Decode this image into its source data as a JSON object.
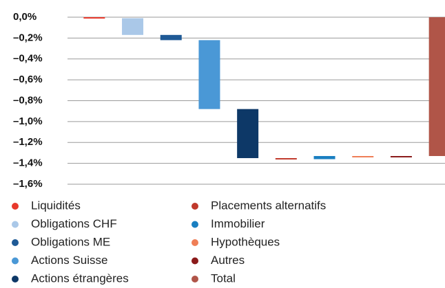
{
  "chart_data": {
    "type": "waterfall",
    "categories": [
      "Liquidités",
      "Obligations CHF",
      "Obligations ME",
      "Actions Suisse",
      "Actions étrangères",
      "Placements alternatifs",
      "Immobilier",
      "Hypothèques",
      "Autres",
      "Total"
    ],
    "values": [
      -0.01,
      -0.16,
      -0.05,
      -0.66,
      -0.47,
      -0.01,
      0.03,
      0.0,
      0.0,
      -1.33
    ],
    "colors": [
      "#e8392c",
      "#aac8e8",
      "#1f5a96",
      "#4a98d6",
      "#0d3867",
      "#c0392b",
      "#1a7fc1",
      "#ef7e56",
      "#8b1a1a",
      "#b05548"
    ],
    "last_is_total": true,
    "ylim": [
      -1.6,
      0
    ],
    "yticks": [
      {
        "value": 0,
        "label": "0,0%"
      },
      {
        "value": -0.2,
        "label": "–0,2%"
      },
      {
        "value": -0.4,
        "label": "–0,4%"
      },
      {
        "value": -0.6,
        "label": "–0,6%"
      },
      {
        "value": -0.8,
        "label": "–0,8%"
      },
      {
        "value": -1.0,
        "label": "–1,0%"
      },
      {
        "value": -1.2,
        "label": "–1,2%"
      },
      {
        "value": -1.4,
        "label": "–1,4%"
      },
      {
        "value": -1.6,
        "label": "–1,6%"
      }
    ],
    "grid": true
  }
}
